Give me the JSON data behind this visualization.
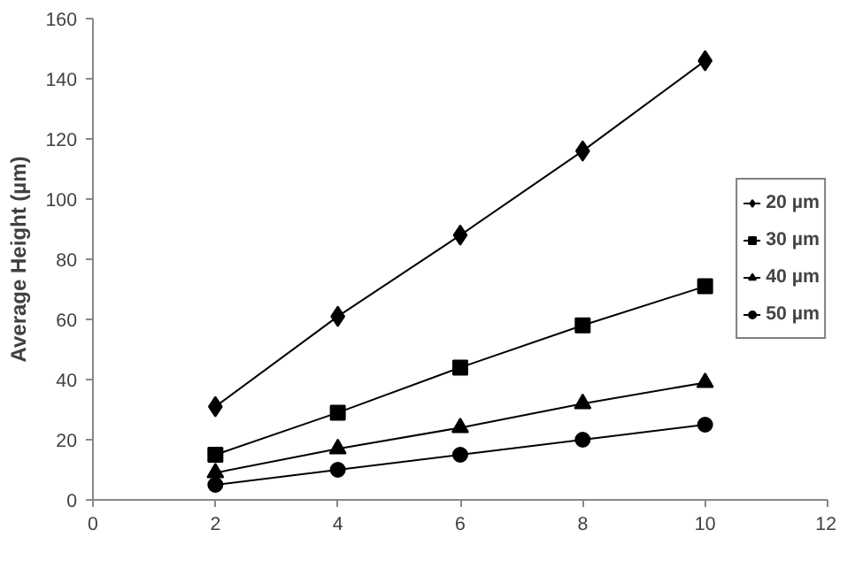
{
  "chart_data": {
    "type": "line",
    "ylabel": "Average Height (µm)",
    "x": [
      2,
      4,
      6,
      8,
      10
    ],
    "xlim": [
      0,
      12
    ],
    "xticks": [
      0,
      2,
      4,
      6,
      8,
      10,
      12
    ],
    "ylim": [
      0,
      160
    ],
    "yticks": [
      0,
      20,
      40,
      60,
      80,
      100,
      120,
      140,
      160
    ],
    "grid": false,
    "legend": "right",
    "series": [
      {
        "name": "20 µm",
        "color": "#000000",
        "marker": "diamond",
        "values": [
          31,
          61,
          88,
          116,
          146
        ]
      },
      {
        "name": "30 µm",
        "color": "#000000",
        "marker": "square",
        "values": [
          15,
          29,
          44,
          58,
          71
        ]
      },
      {
        "name": "40 µm",
        "color": "#000000",
        "marker": "triangle",
        "values": [
          9,
          17,
          24,
          32,
          39
        ]
      },
      {
        "name": "50 µm",
        "color": "#000000",
        "marker": "circle",
        "values": [
          5,
          10,
          15,
          20,
          25
        ]
      }
    ]
  }
}
